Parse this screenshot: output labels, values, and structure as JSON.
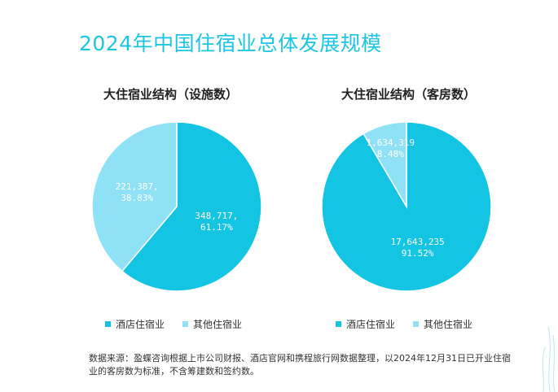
{
  "page": {
    "title": "2024年中国住宿业总体发展规模",
    "footnote": "数据来源：盈蝶咨询根据上市公司财报、酒店官网和携程旅行网数据整理，以2024年12月31日已开业住宿业的客房数为标准，不含筹建数和签约数。"
  },
  "colors": {
    "primary": "#14c5e3",
    "secondary": "#8fe2f6",
    "title": "#1cc6e3"
  },
  "chart_data": [
    {
      "type": "pie",
      "title": "大住宿业结构（设施数）",
      "legend": [
        "酒店住宿业",
        "其他住宿业"
      ],
      "slices": [
        {
          "label": "酒店住宿业",
          "value": 348717,
          "value_text": "348,717,",
          "pct_text": "61.17%",
          "color": "#14c5e3"
        },
        {
          "label": "其他住宿业",
          "value": 221387,
          "value_text": "221,387,",
          "pct_text": "38.83%",
          "color": "#8fe2f6"
        }
      ]
    },
    {
      "type": "pie",
      "title": "大住宿业结构（客房数）",
      "legend": [
        "酒店住宿业",
        "其他住宿业"
      ],
      "slices": [
        {
          "label": "酒店住宿业",
          "value": 17643235,
          "value_text": "17,643,235",
          "pct_text": "91.52%",
          "color": "#14c5e3"
        },
        {
          "label": "其他住宿业",
          "value": 1634319,
          "value_text": "1,634,319",
          "pct_text": "8.48%",
          "color": "#8fe2f6"
        }
      ]
    }
  ]
}
